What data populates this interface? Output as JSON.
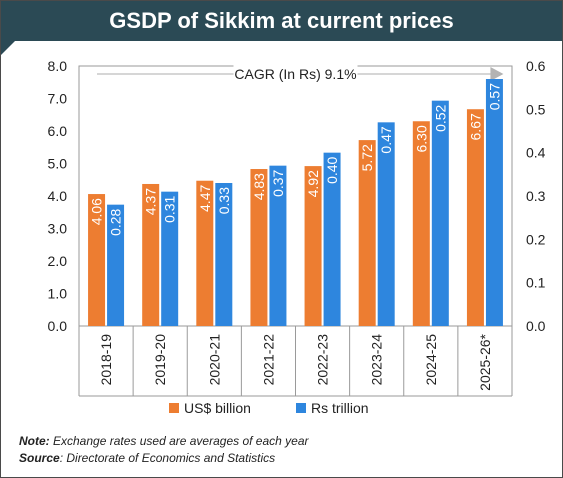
{
  "title": "GSDP of Sikkim at current prices",
  "note_label": "Note:",
  "note_text": " Exchange rates used are averages of each year",
  "source_label": "Source",
  "source_text": ": Directorate of Economics and Statistics",
  "chart_data": {
    "type": "bar",
    "categories": [
      "2018-19",
      "2019-20",
      "2020-21",
      "2021-22",
      "2022-23",
      "2023-24",
      "2024-25",
      "2025-26*"
    ],
    "series": [
      {
        "name": "US$ billion",
        "axis": "left",
        "color": "#ed7d31",
        "values": [
          4.06,
          4.37,
          4.47,
          4.83,
          4.92,
          5.72,
          6.3,
          6.67
        ],
        "labels": [
          "4.06",
          "4.37",
          "4.47",
          "4.83",
          "4.92",
          "5.72",
          "6.30",
          "6.67"
        ]
      },
      {
        "name": "Rs trillion",
        "axis": "right",
        "color": "#2e86de",
        "values": [
          0.28,
          0.31,
          0.33,
          0.37,
          0.4,
          0.47,
          0.52,
          0.57
        ],
        "labels": [
          "0.28",
          "0.31",
          "0.33",
          "0.37",
          "0.40",
          "0.47",
          "0.52",
          "0.57"
        ]
      }
    ],
    "ylim_left": [
      0,
      8
    ],
    "ylim_right": [
      0,
      0.6
    ],
    "yticks_left": [
      "0.0",
      "1.0",
      "2.0",
      "3.0",
      "4.0",
      "5.0",
      "6.0",
      "7.0",
      "8.0"
    ],
    "yticks_right": [
      "0.0",
      "0.1",
      "0.2",
      "0.3",
      "0.4",
      "0.5",
      "0.6"
    ],
    "annotation": "CAGR (In Rs) 9.1%",
    "legend_position": "bottom",
    "grid": false
  }
}
